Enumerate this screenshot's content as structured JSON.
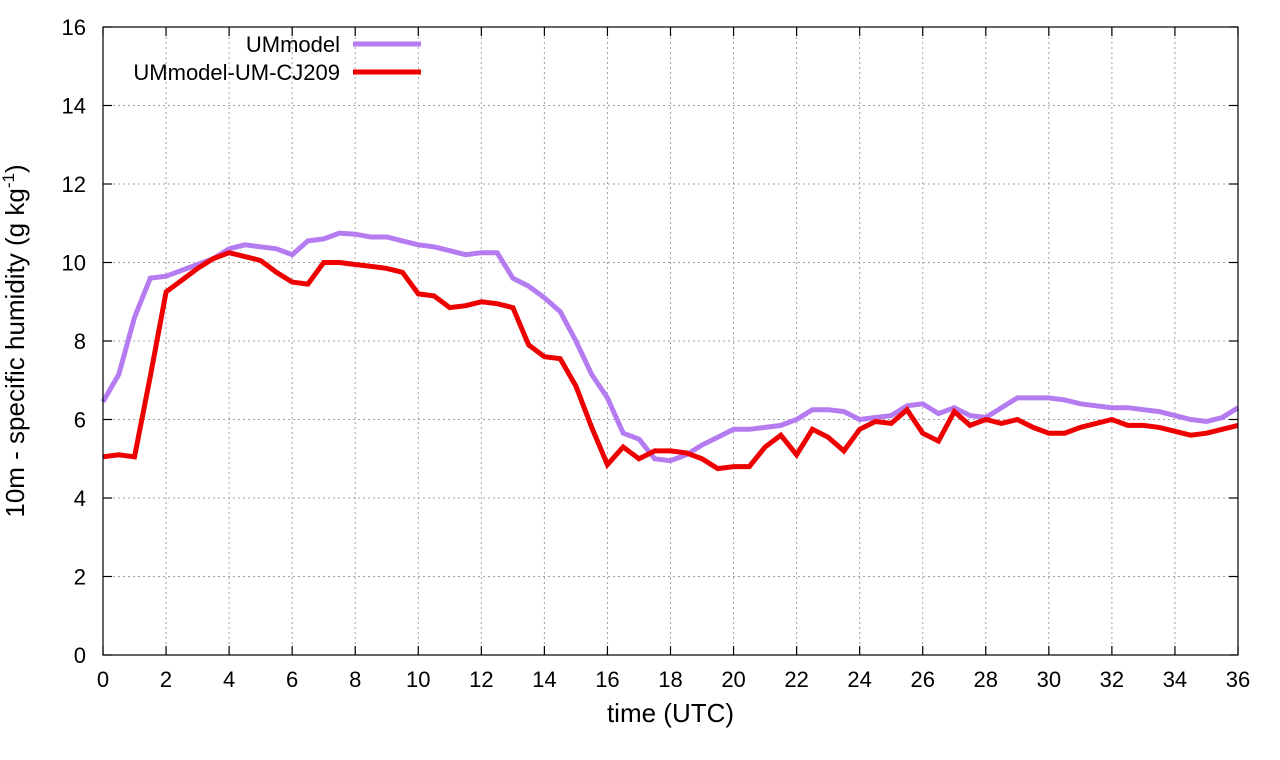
{
  "chart_data": {
    "type": "line",
    "title": "",
    "xlabel": "time (UTC)",
    "ylabel": {
      "main": "10m - specific humidity (g kg",
      "sup": "-1",
      "close": ")"
    },
    "xlim": [
      0,
      36
    ],
    "ylim": [
      0,
      16
    ],
    "xticks": [
      "0",
      "2",
      "4",
      "6",
      "8",
      "10",
      "12",
      "14",
      "16",
      "18",
      "20",
      "22",
      "24",
      "26",
      "28",
      "30",
      "32",
      "34",
      "36"
    ],
    "yticks": [
      "0",
      "2",
      "4",
      "6",
      "8",
      "10",
      "12",
      "14",
      "16"
    ],
    "grid": true,
    "legend_position": "top-left",
    "series": [
      {
        "name": "UMmodel",
        "color": "#b57cf2",
        "x": [
          0,
          0.5,
          1,
          1.5,
          2,
          2.5,
          3,
          3.5,
          4,
          4.5,
          5,
          5.5,
          6,
          6.5,
          7,
          7.5,
          8,
          8.5,
          9,
          9.5,
          10,
          10.5,
          11,
          11.5,
          12,
          12.5,
          13,
          13.5,
          14,
          14.5,
          15,
          15.5,
          16,
          16.5,
          17,
          17.5,
          18,
          18.5,
          19,
          19.5,
          20,
          20.5,
          21,
          21.5,
          22,
          22.5,
          23,
          23.5,
          24,
          24.5,
          25,
          25.5,
          26,
          26.5,
          27,
          27.5,
          28,
          28.5,
          29,
          29.5,
          30,
          30.5,
          31,
          31.5,
          32,
          32.5,
          33,
          33.5,
          34,
          34.5,
          35,
          35.5,
          36
        ],
        "values": [
          6.45,
          7.15,
          8.6,
          9.6,
          9.65,
          9.8,
          9.95,
          10.1,
          10.35,
          10.45,
          10.4,
          10.35,
          10.2,
          10.55,
          10.6,
          10.75,
          10.72,
          10.65,
          10.65,
          10.55,
          10.45,
          10.4,
          10.3,
          10.2,
          10.25,
          10.25,
          9.6,
          9.4,
          9.1,
          8.75,
          8.0,
          7.15,
          6.55,
          5.65,
          5.5,
          5.0,
          4.95,
          5.1,
          5.35,
          5.55,
          5.75,
          5.75,
          5.8,
          5.85,
          6.0,
          6.25,
          6.25,
          6.2,
          6.0,
          6.05,
          6.1,
          6.35,
          6.4,
          6.15,
          6.3,
          6.1,
          6.05,
          6.3,
          6.55,
          6.55,
          6.55,
          6.5,
          6.4,
          6.35,
          6.3,
          6.3,
          6.25,
          6.2,
          6.1,
          6.0,
          5.95,
          6.05,
          6.3
        ]
      },
      {
        "name": "UMmodel-UM-CJ209",
        "color": "#ee0000",
        "x": [
          0,
          0.5,
          1,
          1.5,
          2,
          2.5,
          3,
          3.5,
          4,
          4.5,
          5,
          5.5,
          6,
          6.5,
          7,
          7.5,
          8,
          8.5,
          9,
          9.5,
          10,
          10.5,
          11,
          11.5,
          12,
          12.5,
          13,
          13.5,
          14,
          14.5,
          15,
          15.5,
          16,
          16.5,
          17,
          17.5,
          18,
          18.5,
          19,
          19.5,
          20,
          20.5,
          21,
          21.5,
          22,
          22.5,
          23,
          23.5,
          24,
          24.5,
          25,
          25.5,
          26,
          26.5,
          27,
          27.5,
          28,
          28.5,
          29,
          29.5,
          30,
          30.5,
          31,
          31.5,
          32,
          32.5,
          33,
          33.5,
          34,
          34.5,
          35,
          35.5,
          36
        ],
        "values": [
          5.05,
          5.1,
          5.05,
          7.1,
          9.25,
          9.55,
          9.85,
          10.1,
          10.25,
          10.15,
          10.05,
          9.75,
          9.5,
          9.45,
          10.0,
          10.0,
          9.95,
          9.9,
          9.85,
          9.75,
          9.2,
          9.15,
          8.85,
          8.9,
          9.0,
          8.95,
          8.85,
          7.9,
          7.6,
          7.55,
          6.85,
          5.8,
          4.85,
          5.3,
          5.0,
          5.2,
          5.2,
          5.15,
          5.0,
          4.75,
          4.8,
          4.8,
          5.3,
          5.6,
          5.1,
          5.75,
          5.55,
          5.2,
          5.75,
          5.95,
          5.9,
          6.25,
          5.65,
          5.45,
          6.2,
          5.85,
          6.0,
          5.9,
          6.0,
          5.8,
          5.65,
          5.65,
          5.8,
          5.9,
          6.0,
          5.85,
          5.85,
          5.8,
          5.7,
          5.6,
          5.65,
          5.75,
          5.85
        ]
      }
    ]
  }
}
